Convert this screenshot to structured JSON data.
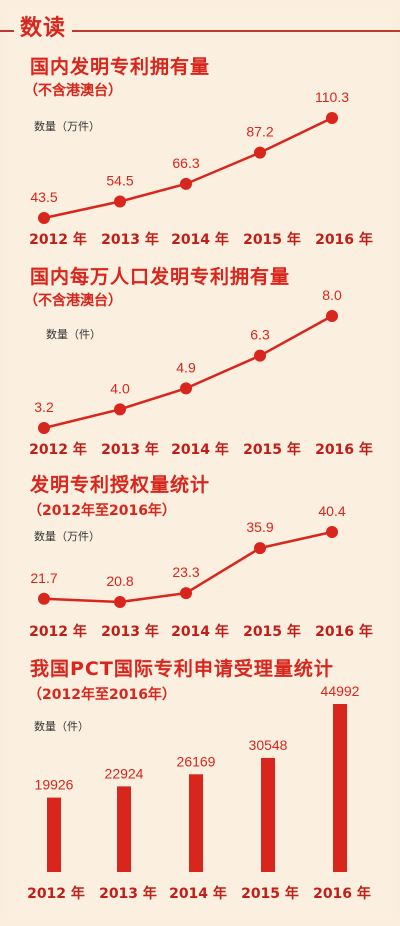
{
  "header": {
    "label": "数读"
  },
  "charts_text": [
    {
      "title": "国内发明专利拥有量",
      "subtitle": "（不含港澳台）",
      "ylabel": "数量（万件）"
    },
    {
      "title": "国内每万人口发明专利拥有量",
      "subtitle": "（不含港澳台）",
      "ylabel": "数量（件）"
    },
    {
      "title": "发明专利授权量统计",
      "subtitle": "（2012年至2016年）",
      "ylabel": "数量（万件）"
    },
    {
      "title": "我国PCT国际专利申请受理量统计",
      "subtitle": "（2012年至2016年）",
      "ylabel": "数量（件）"
    }
  ],
  "colors": {
    "accent": "#d9261c",
    "background": "#fbefe0"
  },
  "chart_data": [
    {
      "type": "line",
      "title": "国内发明专利拥有量",
      "subtitle": "（不含港澳台）",
      "ylabel": "数量（万件）",
      "categories": [
        "2012 年",
        "2013 年",
        "2014 年",
        "2015 年",
        "2016 年"
      ],
      "values": [
        43.5,
        54.5,
        66.3,
        87.2,
        110.3
      ],
      "labels": [
        "43.5",
        "54.5",
        "66.3",
        "87.2",
        "110.3"
      ]
    },
    {
      "type": "line",
      "title": "国内每万人口发明专利拥有量",
      "subtitle": "（不含港澳台）",
      "ylabel": "数量（件）",
      "categories": [
        "2012 年",
        "2013 年",
        "2014 年",
        "2015 年",
        "2016 年"
      ],
      "values": [
        3.2,
        4.0,
        4.9,
        6.3,
        8.0
      ],
      "labels": [
        "3.2",
        "4.0",
        "4.9",
        "6.3",
        "8.0"
      ]
    },
    {
      "type": "line",
      "title": "发明专利授权量统计",
      "subtitle": "（2012年至2016年）",
      "ylabel": "数量（万件）",
      "categories": [
        "2012 年",
        "2013 年",
        "2014 年",
        "2015 年",
        "2016 年"
      ],
      "values": [
        21.7,
        20.8,
        23.3,
        35.9,
        40.4
      ],
      "labels": [
        "21.7",
        "20.8",
        "23.3",
        "35.9",
        "40.4"
      ]
    },
    {
      "type": "bar",
      "title": "我国PCT国际专利申请受理量统计",
      "subtitle": "（2012年至2016年）",
      "ylabel": "数量（件）",
      "categories": [
        "2012 年",
        "2013 年",
        "2014 年",
        "2015 年",
        "2016 年"
      ],
      "values": [
        19926,
        22924,
        26169,
        30548,
        44992
      ],
      "labels": [
        "19926",
        "22924",
        "26169",
        "30548",
        "44992"
      ]
    }
  ]
}
